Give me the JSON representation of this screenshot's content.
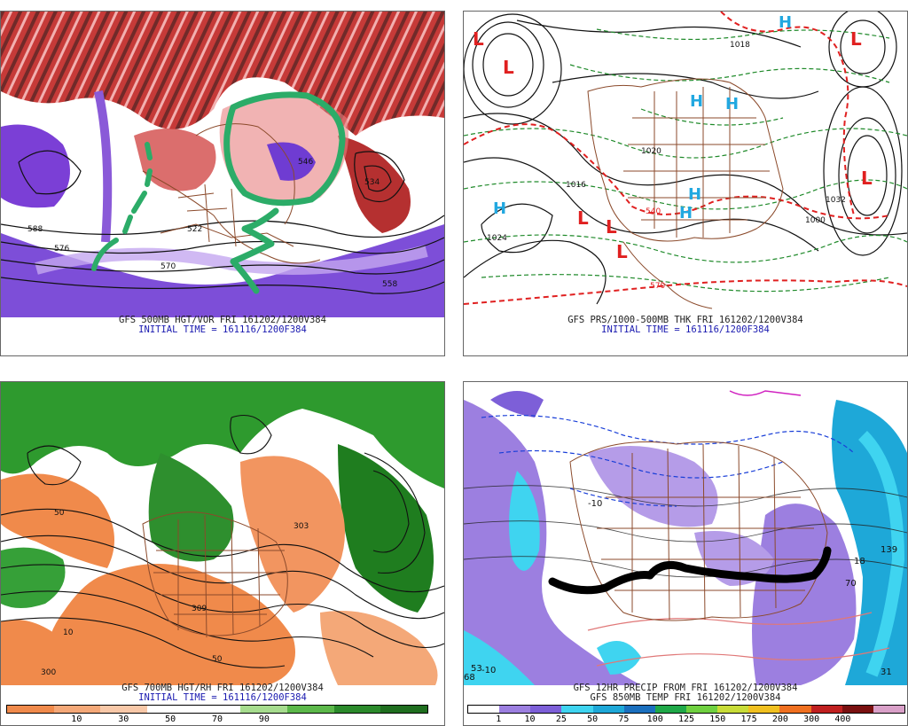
{
  "panels": [
    {
      "id": "vorticity",
      "caption_line1": "GFS 500MB HGT/VOR FRI 161202/1200V384",
      "caption_line2": "INITIAL TIME = 161116/1200F384",
      "contour_labels": [
        "588",
        "576",
        "546",
        "534",
        "522",
        "558",
        "570"
      ]
    },
    {
      "id": "thickness",
      "caption_line1": "GFS PRS/1000-500MB THK FRI 161202/1200V384",
      "caption_line2": "INITIAL TIME = 161116/1200F384",
      "pressure_labels": [
        "1016",
        "1018",
        "1024",
        "1020",
        "1000",
        "1032",
        "570",
        "540"
      ],
      "highs": [
        "H",
        "H",
        "H",
        "H",
        "H",
        "H"
      ],
      "lows": [
        "L",
        "L",
        "L",
        "L",
        "L",
        "L",
        "L"
      ]
    },
    {
      "id": "humidity",
      "caption_line1": "GFS 700MB HGT/RH FRI 161202/1200V384",
      "caption_line2": "INITIAL TIME = 161116/1200F384",
      "contour_labels": [
        "50",
        "10",
        "50",
        "303",
        "309",
        "300"
      ],
      "scale_ticks": [
        "10",
        "30",
        "50",
        "70",
        "90"
      ],
      "scale_colors": [
        "#f08a4b",
        "#f4a878",
        "#f8c8a8",
        "#ffffff",
        "#ffffff",
        "#a6dc8e",
        "#5cb84a",
        "#2b8a2b",
        "#1f6e1f"
      ]
    },
    {
      "id": "precip",
      "caption_line1": "GFS 12HR PRECIP FROM FRI 161202/1200V384",
      "caption_line2": "GFS 850MB TEMP FRI 161202/1200V384",
      "temp_labels": [
        "-10",
        "-10",
        "18",
        "139",
        "68",
        "53",
        "70",
        "31"
      ],
      "scale_ticks": [
        "1",
        "10",
        "25",
        "50",
        "75",
        "100",
        "125",
        "150",
        "175",
        "200",
        "300",
        "400"
      ],
      "scale_colors": [
        "#ffffff",
        "#9c7fe0",
        "#7d5fd8",
        "#3fd4f0",
        "#1ea8d8",
        "#1a6fbe",
        "#1fa848",
        "#6fd040",
        "#c8dc38",
        "#f0c020",
        "#f07020",
        "#c02020",
        "#7a1010",
        "#d9a0c8"
      ]
    }
  ]
}
